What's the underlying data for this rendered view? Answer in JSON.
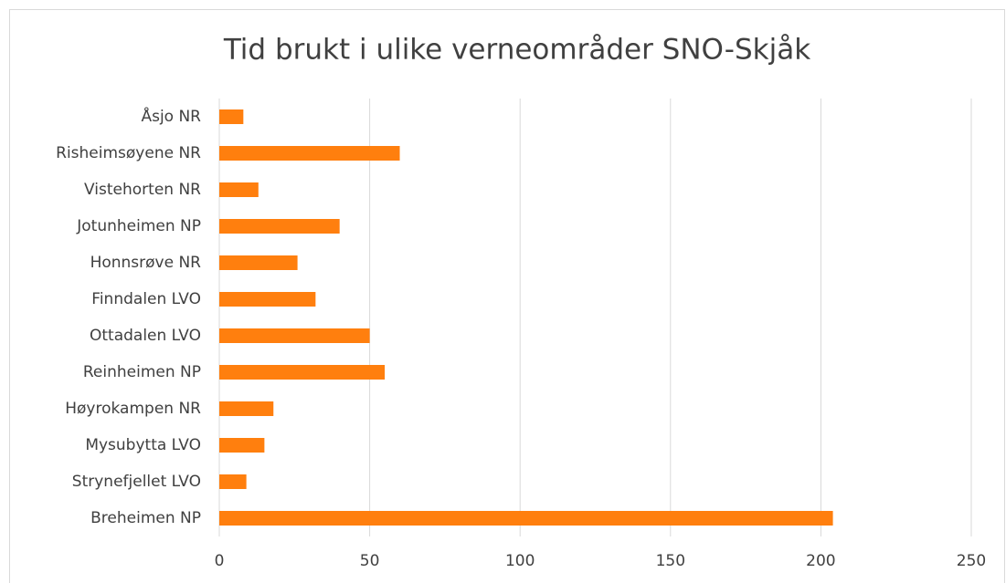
{
  "chart_data": {
    "type": "barh",
    "title": "Tid brukt i ulike verneområder SNO-Skjåk",
    "categories": [
      "Åsjo NR",
      "Risheimsøyene NR",
      "Vistehorten NR",
      "Jotunheimen NP",
      "Honnsrøve NR",
      "Finndalen LVO",
      "Ottadalen LVO",
      "Reinheimen NP",
      "Høyrokampen NR",
      "Mysubytta LVO",
      "Strynefjellet LVO",
      "Breheimen NP"
    ],
    "values": [
      8,
      60,
      13,
      40,
      26,
      32,
      50,
      55,
      18,
      15,
      9,
      204
    ],
    "color": "#ff7f0e",
    "xlim": [
      0,
      250
    ],
    "xticks": [
      0,
      50,
      100,
      150,
      200,
      250
    ],
    "grid": true
  }
}
